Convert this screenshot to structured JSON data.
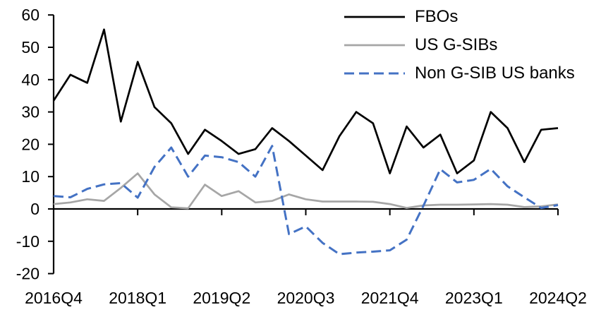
{
  "chart_data": {
    "type": "line",
    "title": "",
    "grid": false,
    "legend_position": "top-right",
    "ylim": [
      -20,
      60
    ],
    "y_ticks": [
      60,
      50,
      40,
      30,
      20,
      10,
      0,
      -10,
      -20
    ],
    "x_tick_indices": [
      0,
      5,
      10,
      15,
      20,
      25,
      30
    ],
    "x_tick_labels": [
      "2016Q4",
      "2018Q1",
      "2019Q2",
      "2020Q3",
      "2021Q4",
      "2023Q1",
      "2024Q2"
    ],
    "categories": [
      "2016Q4",
      "2017Q1",
      "2017Q2",
      "2017Q3",
      "2017Q4",
      "2018Q1",
      "2018Q2",
      "2018Q3",
      "2018Q4",
      "2019Q1",
      "2019Q2",
      "2019Q3",
      "2019Q4",
      "2020Q1",
      "2020Q2",
      "2020Q3",
      "2020Q4",
      "2021Q1",
      "2021Q2",
      "2021Q3",
      "2021Q4",
      "2022Q1",
      "2022Q2",
      "2022Q3",
      "2022Q4",
      "2023Q1",
      "2023Q2",
      "2023Q3",
      "2023Q4",
      "2024Q1",
      "2024Q2"
    ],
    "series": [
      {
        "name": "FBOs",
        "color": "#000000",
        "style": "solid",
        "values": [
          33.5,
          41.5,
          39,
          55.5,
          27,
          45.5,
          31.5,
          26.5,
          17,
          24.5,
          21,
          17,
          18.5,
          25,
          21,
          16.5,
          12,
          22.5,
          30,
          26.5,
          11,
          25.5,
          19,
          23,
          11,
          15,
          30,
          25,
          14.5,
          24.5,
          25
        ]
      },
      {
        "name": "US G-SIBs",
        "color": "#a6a6a6",
        "style": "solid",
        "values": [
          1.5,
          2,
          3,
          2.5,
          6.5,
          11,
          4.5,
          0.5,
          0.2,
          7.5,
          4,
          5.5,
          2,
          2.5,
          4.5,
          3,
          2.3,
          2.3,
          2.3,
          2.2,
          1.5,
          0.3,
          1.1,
          1.3,
          1.3,
          1.4,
          1.5,
          1.3,
          0.6,
          0.8,
          1.4
        ]
      },
      {
        "name": "Non G-SIB US banks",
        "color": "#4472c4",
        "style": "dashed",
        "values": [
          4,
          3.6,
          6.2,
          7.6,
          8,
          3.5,
          13,
          19,
          10,
          16.5,
          16,
          14.5,
          10,
          19.5,
          -7.8,
          -5.4,
          -10.5,
          -14,
          -13.5,
          -13.2,
          -12.8,
          -9.5,
          1,
          12.3,
          8.2,
          9,
          12.4,
          7,
          3.6,
          0.3,
          1.2
        ]
      }
    ]
  }
}
